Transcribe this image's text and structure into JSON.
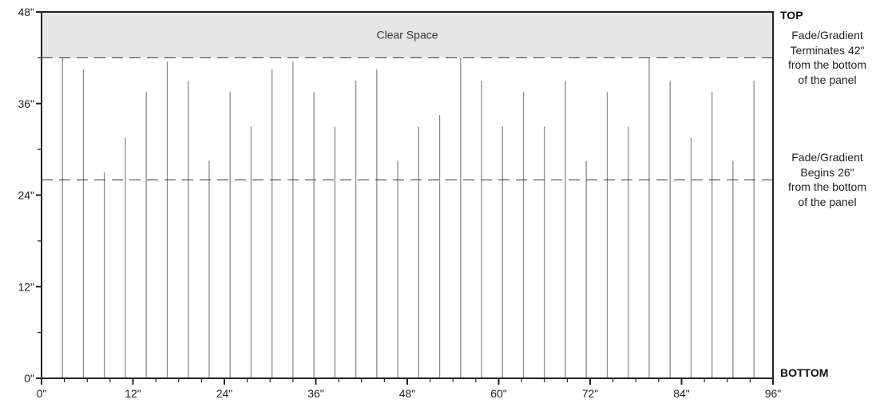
{
  "chart_data": {
    "type": "diagram",
    "x_unit": "inches",
    "y_unit": "inches",
    "xlim": [
      0,
      96
    ],
    "ylim": [
      0,
      48
    ],
    "x_tick_labels": [
      {
        "value": 0,
        "label": "0\""
      },
      {
        "value": 12,
        "label": "12\""
      },
      {
        "value": 24,
        "label": "24\""
      },
      {
        "value": 36,
        "label": "36\""
      },
      {
        "value": 48,
        "label": "48\""
      },
      {
        "value": 60,
        "label": "60\""
      },
      {
        "value": 72,
        "label": "72\""
      },
      {
        "value": 84,
        "label": "84\""
      },
      {
        "value": 96,
        "label": "96\""
      }
    ],
    "y_tick_labels": [
      {
        "value": 0,
        "label": "0\""
      },
      {
        "value": 12,
        "label": "12\""
      },
      {
        "value": 24,
        "label": "24\""
      },
      {
        "value": 36,
        "label": "36\""
      },
      {
        "value": 48,
        "label": "48\""
      }
    ],
    "x_minor_ticks": [
      3,
      6,
      9,
      15,
      18,
      21,
      27,
      30,
      33,
      39,
      42,
      45,
      51,
      54,
      57,
      63,
      66,
      69,
      75,
      78,
      81,
      87,
      90,
      93
    ],
    "y_minor_ticks": [
      6,
      18,
      30,
      42
    ],
    "clear_space": {
      "from": 42,
      "to": 48,
      "label": "Clear Space"
    },
    "gradient_end_line": 42,
    "gradient_start_line": 26,
    "bars": [
      {
        "x": 2.75,
        "height": 42
      },
      {
        "x": 5.5,
        "height": 40.5
      },
      {
        "x": 8.25,
        "height": 27
      },
      {
        "x": 11,
        "height": 31.5
      },
      {
        "x": 13.75,
        "height": 37.5
      },
      {
        "x": 16.5,
        "height": 41.5
      },
      {
        "x": 19.25,
        "height": 39
      },
      {
        "x": 22,
        "height": 28.5
      },
      {
        "x": 24.75,
        "height": 37.5
      },
      {
        "x": 27.5,
        "height": 33
      },
      {
        "x": 30.25,
        "height": 40.5
      },
      {
        "x": 33,
        "height": 41.5
      },
      {
        "x": 35.75,
        "height": 37.5
      },
      {
        "x": 38.5,
        "height": 33
      },
      {
        "x": 41.25,
        "height": 39
      },
      {
        "x": 44,
        "height": 40.5
      },
      {
        "x": 46.75,
        "height": 28.5
      },
      {
        "x": 49.5,
        "height": 33
      },
      {
        "x": 52.25,
        "height": 34.5
      },
      {
        "x": 55,
        "height": 42
      },
      {
        "x": 57.75,
        "height": 39
      },
      {
        "x": 60.5,
        "height": 33
      },
      {
        "x": 63.25,
        "height": 37.5
      },
      {
        "x": 66,
        "height": 33
      },
      {
        "x": 68.75,
        "height": 39
      },
      {
        "x": 71.5,
        "height": 28.5
      },
      {
        "x": 74.25,
        "height": 37.5
      },
      {
        "x": 77,
        "height": 33
      },
      {
        "x": 79.75,
        "height": 42
      },
      {
        "x": 82.5,
        "height": 39
      },
      {
        "x": 85.25,
        "height": 31.5
      },
      {
        "x": 88,
        "height": 37.5
      },
      {
        "x": 90.75,
        "height": 28.5
      },
      {
        "x": 93.5,
        "height": 39
      }
    ]
  },
  "labels": {
    "top": "TOP",
    "bottom": "BOTTOM",
    "terminates_note": [
      "Fade/Gradient",
      "Terminates 42\"",
      "from the bottom",
      "of the panel"
    ],
    "begins_note": [
      "Fade/Gradient",
      "Begins 26\"",
      "from the bottom",
      "of the panel"
    ]
  },
  "colors": {
    "clear_space_fill": "#e6e6e6",
    "bar": "#8c8c8c",
    "frame": "#222222",
    "dashed": "#333333"
  }
}
